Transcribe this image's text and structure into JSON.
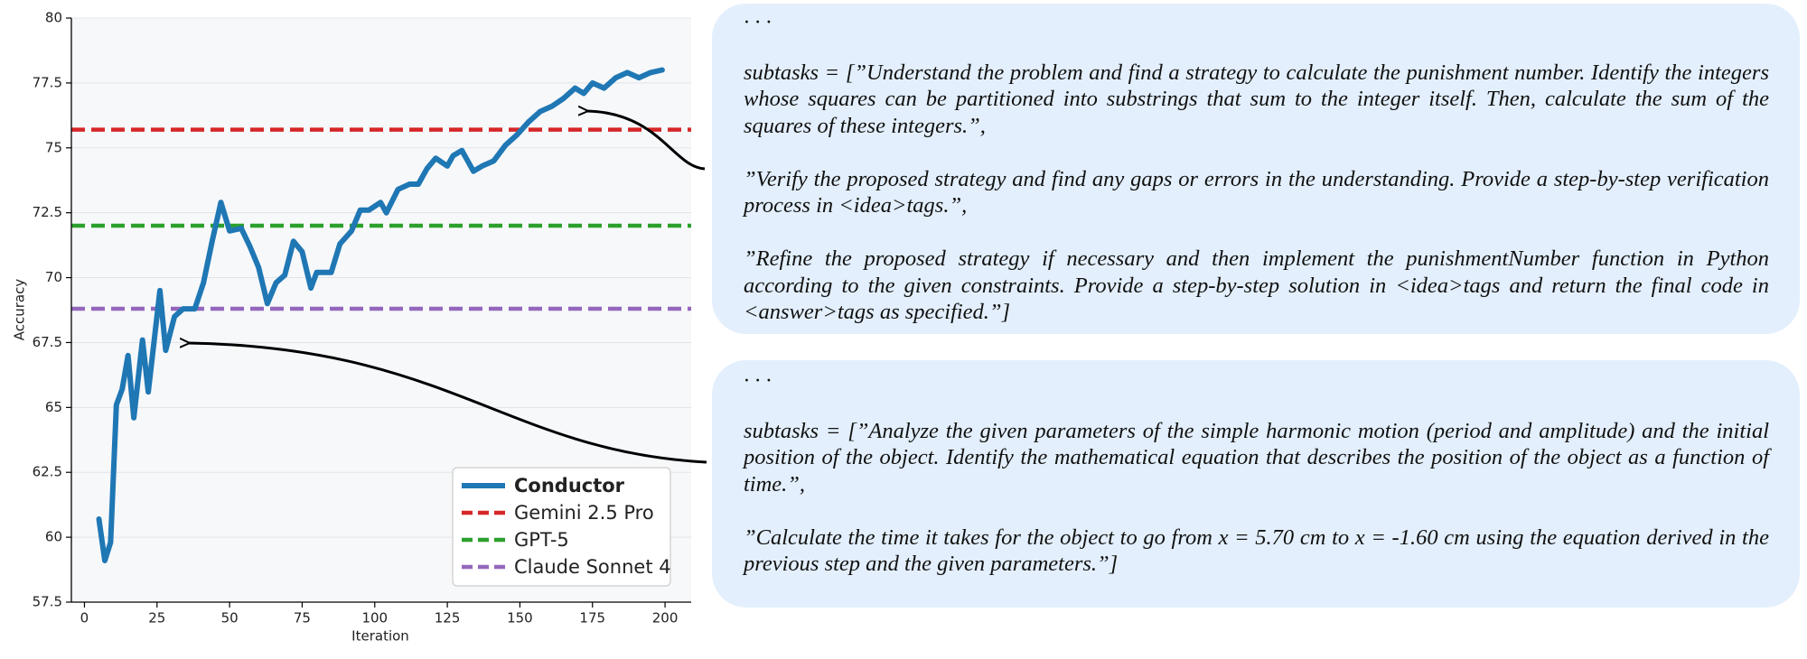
{
  "chart_data": {
    "type": "line",
    "xlabel": "Iteration",
    "ylabel": "Accuracy",
    "xlim": [
      -4.5,
      209
    ],
    "ylim": [
      57.5,
      80
    ],
    "xticks": [
      0,
      25,
      50,
      75,
      100,
      125,
      150,
      175,
      200
    ],
    "yticks": [
      57.5,
      60,
      62.5,
      65,
      67.5,
      70,
      72.5,
      75,
      77.5,
      80
    ],
    "grid": true,
    "legend": "lower right",
    "series": [
      {
        "name": "Conductor",
        "color": "#1f77b4",
        "x": [
          5,
          7,
          9,
          11,
          13,
          15,
          17,
          20,
          22,
          26,
          28,
          31,
          34,
          38,
          41,
          44,
          47,
          50,
          54,
          57,
          60,
          63,
          66,
          69,
          72,
          75,
          78,
          80,
          85,
          88,
          92,
          95,
          98,
          102,
          104,
          108,
          112,
          115,
          118,
          121,
          125,
          127,
          130,
          134,
          137,
          141,
          145,
          149,
          153,
          157,
          161,
          165,
          169,
          172,
          175,
          179,
          183,
          187,
          191,
          195,
          199
        ],
        "values": [
          60.7,
          59.1,
          59.8,
          65.1,
          65.7,
          67,
          64.6,
          67.6,
          65.6,
          69.5,
          67.2,
          68.5,
          68.8,
          68.8,
          69.8,
          71.4,
          72.9,
          71.8,
          71.9,
          71.2,
          70.4,
          69,
          69.8,
          70.1,
          71.4,
          71,
          69.6,
          70.2,
          70.2,
          71.3,
          71.8,
          72.6,
          72.6,
          72.9,
          72.5,
          73.4,
          73.6,
          73.6,
          74.2,
          74.6,
          74.3,
          74.7,
          74.9,
          74.1,
          74.3,
          74.5,
          75.1,
          75.5,
          76,
          76.4,
          76.6,
          76.9,
          77.3,
          77.1,
          77.5,
          77.3,
          77.7,
          77.9,
          77.7,
          77.9,
          78
        ]
      }
    ],
    "hlines": [
      {
        "name": "Gemini 2.5 Pro",
        "color": "#d62728",
        "value": 75.7
      },
      {
        "name": "GPT-5",
        "color": "#2ca02c",
        "value": 72
      },
      {
        "name": "Claude Sonnet 4",
        "color": "#9467bd",
        "value": 68.8
      }
    ]
  },
  "text_boxes": [
    {
      "paragraphs": [
        "· · ·",
        "subtasks = [”Understand the problem and find a strategy to calculate the punishment number. Identify the integers whose squares can be partitioned into substrings that sum to the integer itself. Then, calculate the sum of the squares of these integers.”,",
        "”Verify the proposed strategy and find any gaps or errors in the understanding.  Provide a step-by-step verification process in <idea>tags.”,",
        "”Refine the proposed strategy if necessary and then implement the punishmentNumber function in Python according to the given constraints. Provide a step-by-step solution in <idea>tags and return the final code in <answer>tags as specified.”]"
      ]
    },
    {
      "paragraphs": [
        "· · ·",
        "subtasks = [”Analyze the given parameters of the simple harmonic motion (period and amplitude) and the initial position of the object. Identify the mathematical equation that describes the position of the object as a function of time.”,",
        "”Calculate the time it takes for the object to go from x = 5.70 cm to x = -1.60 cm using the equation derived in the previous step and the given parameters.”]"
      ]
    }
  ]
}
